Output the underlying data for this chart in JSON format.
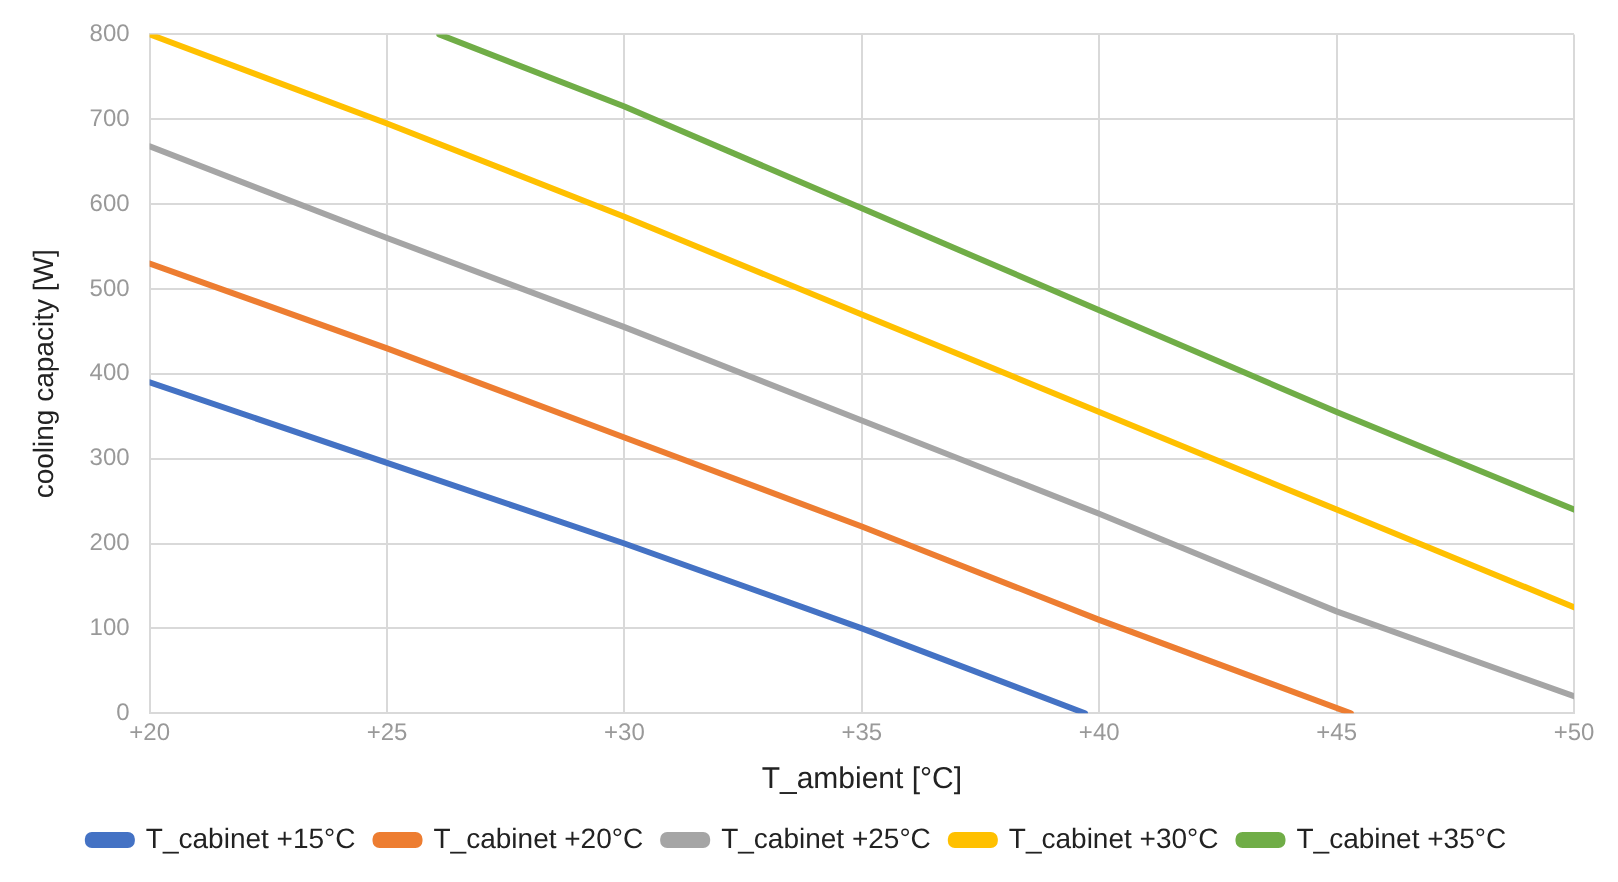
{
  "chart_data": {
    "type": "line",
    "xlabel": "T_ambient [°C]",
    "ylabel": "cooling capacity [W]",
    "xlim": [
      20,
      50
    ],
    "xticks": [
      {
        "value": 20,
        "label": "+20"
      },
      {
        "value": 25,
        "label": "+25"
      },
      {
        "value": 30,
        "label": "+30"
      },
      {
        "value": 35,
        "label": "+35"
      },
      {
        "value": 40,
        "label": "+40"
      },
      {
        "value": 45,
        "label": "+45"
      },
      {
        "value": 50,
        "label": "+50"
      }
    ],
    "ylim": [
      0,
      800
    ],
    "yticks": [
      0,
      100,
      200,
      300,
      400,
      500,
      600,
      700,
      800
    ],
    "grid": true,
    "legend": "bottom",
    "marker": "none",
    "line_style": "solid",
    "series": [
      {
        "name": "T_cabinet +15°C",
        "color": "#4472c4",
        "x": [
          20,
          25,
          30,
          35,
          39.7
        ],
        "values": [
          390,
          295,
          200,
          100,
          0
        ]
      },
      {
        "name": "T_cabinet +20°C",
        "color": "#ed7d31",
        "x": [
          20,
          25,
          30,
          35,
          40,
          45.3
        ],
        "values": [
          530,
          430,
          325,
          220,
          110,
          0
        ]
      },
      {
        "name": "T_cabinet +25°C",
        "color": "#a5a5a5",
        "x": [
          20,
          25,
          30,
          35,
          40,
          45,
          50
        ],
        "values": [
          668,
          560,
          455,
          345,
          235,
          120,
          20
        ]
      },
      {
        "name": "T_cabinet +30°C",
        "color": "#ffc000",
        "x": [
          20,
          25,
          30,
          35,
          40,
          45,
          50
        ],
        "values": [
          800,
          695,
          585,
          470,
          355,
          240,
          125
        ]
      },
      {
        "name": "T_cabinet +35°C",
        "color": "#70ad47",
        "x": [
          26.1,
          30,
          35,
          40,
          45,
          50
        ],
        "values": [
          800,
          715,
          595,
          475,
          355,
          240
        ]
      }
    ]
  }
}
